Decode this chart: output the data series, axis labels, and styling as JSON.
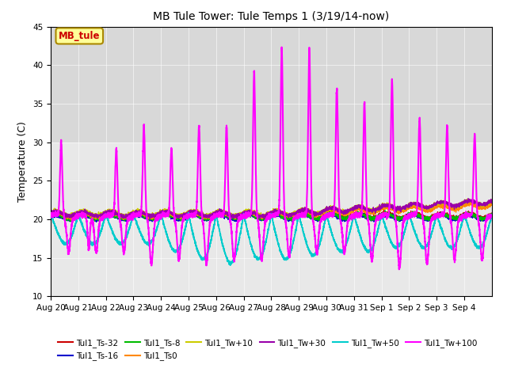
{
  "title": "MB Tule Tower: Tule Temps 1 (3/19/14-now)",
  "ylabel": "Temperature (C)",
  "ylim": [
    10,
    45
  ],
  "yticks": [
    10,
    15,
    20,
    25,
    30,
    35,
    40,
    45
  ],
  "background_color": "#ffffff",
  "plot_bg_color": "#e8e8e8",
  "shaded_band": [
    30,
    45
  ],
  "shaded_color": "#d8d8d8",
  "legend_label": "MB_tule",
  "legend_bg": "#ffff99",
  "legend_border": "#aa8800",
  "series": [
    {
      "name": "Tul1_Ts-32",
      "color": "#cc0000",
      "lw": 1.0
    },
    {
      "name": "Tul1_Ts-16",
      "color": "#0000cc",
      "lw": 1.0
    },
    {
      "name": "Tul1_Ts-8",
      "color": "#00bb00",
      "lw": 1.0
    },
    {
      "name": "Tul1_Ts0",
      "color": "#ff8800",
      "lw": 1.0
    },
    {
      "name": "Tul1_Tw+10",
      "color": "#cccc00",
      "lw": 1.0
    },
    {
      "name": "Tul1_Tw+30",
      "color": "#9900aa",
      "lw": 1.0
    },
    {
      "name": "Tul1_Tw+50",
      "color": "#00cccc",
      "lw": 1.2
    },
    {
      "name": "Tul1_Tw+100",
      "color": "#ff00ff",
      "lw": 1.5
    }
  ],
  "n_days": 16,
  "date_labels": [
    "Aug 20",
    "Aug 21",
    "Aug 22",
    "Aug 23",
    "Aug 24",
    "Aug 25",
    "Aug 26",
    "Aug 27",
    "Aug 28",
    "Aug 29",
    "Aug 30",
    "Aug 31",
    "Sep 1",
    "Sep 2",
    "Sep 3",
    "Sep 4"
  ]
}
